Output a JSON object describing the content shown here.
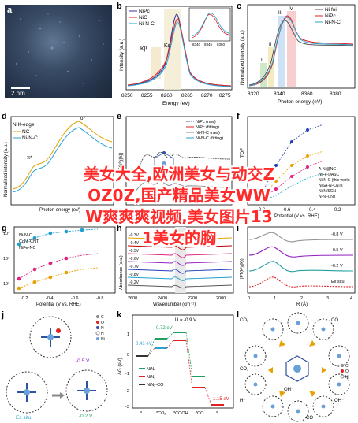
{
  "overlay_lines": [
    "美女大全,欧洲美女与动交Z",
    "OZ0Z,国产精品美女WW",
    "W爽爽爽视频,美女图片13",
    "1美女的胸"
  ],
  "panels": {
    "a": {
      "label": "a",
      "scale_bar": "2 nm"
    },
    "b": {
      "label": "b",
      "legend": [
        "NiPc",
        "NiO",
        "Ni-N-C"
      ],
      "xlabel": "Energy (eV)",
      "ylabel": "Intensity (a.u.)",
      "xticks": [
        "8250",
        "8255",
        "8260",
        "8265",
        "8270",
        "8275"
      ],
      "annot": [
        "Kβ",
        "Kα"
      ],
      "inset_legend": [
        "NiPc",
        "NiO",
        "Ni-N-C"
      ],
      "inset_xticks": [
        "8340",
        "8345",
        "8350"
      ],
      "inset_xlabel": "Energy (eV)"
    },
    "c": {
      "label": "c",
      "legend": [
        "Ni foil",
        "NiPc",
        "Ni-N-C"
      ],
      "xlabel": "Photon energy (eV)",
      "ylabel": "Normalized intensity (a.u.)",
      "xticks": [
        "8320",
        "8340",
        "8360",
        "8380"
      ],
      "annot": [
        "I",
        "II",
        "III",
        "IV"
      ]
    },
    "d": {
      "label": "d",
      "title": "N K-edge",
      "legend": [
        "NC",
        "Ni-N-C"
      ],
      "ylabel": "Normalized intensity (a.u.)",
      "xlabel": "Photon energy (eV)",
      "annot": [
        "π*",
        "σ*",
        "N pyridinic",
        "N graphitic",
        "N pyrrolic"
      ]
    },
    "e": {
      "label": "e",
      "legend": [
        "NiPc (raw)",
        "NiPc (fitting)",
        "Ni-N-C (raw)",
        "Ni-N-C (fitting)"
      ],
      "ylabel": "FT(k³χ(k))"
    },
    "f": {
      "label": "f",
      "legend": [
        "A-Ni@NG",
        "NiFe-DASC",
        "Ni-N-C (this work)",
        "NiSA-N-CNTs",
        "Ni-N/SCN",
        "N-Ni-CNT"
      ],
      "ylabel": "TOF",
      "xlabel": "Potential (V vs. RHE)",
      "xticks": [
        "-0.8",
        "-0.6",
        "-0.4",
        "-0.2"
      ]
    },
    "g": {
      "label": "g",
      "legend": [
        "Ni-N-C",
        "CoNi-CNT",
        "NiFe-NC"
      ],
      "ylabel": "TOF (s⁻¹)",
      "xlabel": "Potential (V vs. RHE)",
      "yticks": [
        "10⁴",
        "10³",
        "10²"
      ],
      "xticks": [
        "-0.2",
        "-0.4",
        "-0.6",
        "-0.8"
      ]
    },
    "h": {
      "label": "h",
      "ylabel": "Absorbance (a.u.)",
      "xlabel": "Wavenumber (cm⁻¹)",
      "curve_labels": [
        "-0.3V",
        "-0.4V",
        "-0.5V",
        "-0.6V",
        "-0.7V",
        "-0.8V",
        "-0.2V"
      ],
      "xticks": [
        "2600",
        "2400",
        "2200",
        "2000"
      ]
    },
    "i": {
      "label": "i",
      "curve_labels": [
        "-0.8 V",
        "-0.5 V",
        "-0.2 V",
        "Ex situ"
      ],
      "ylabel": "|FT(k³χ(k))|",
      "xlabel": "R (Å)",
      "xticks": [
        "0",
        "1",
        "2",
        "3",
        "4"
      ]
    },
    "j": {
      "label": "j",
      "annot": [
        "-0.5 V",
        "Ex situ",
        "-0.2 V"
      ],
      "legend": [
        "C",
        "O",
        "N",
        "H",
        "Ni"
      ]
    },
    "k": {
      "label": "k",
      "annot": [
        "U = -0.9 V",
        "0.72 eV",
        "0.41 eV",
        "1.15 eV"
      ],
      "legend": [
        "NiN₄",
        "NiN₂",
        "NiN₂-CO"
      ],
      "ylabel": "ΔG (eV)",
      "xticks": [
        "*",
        "*CO₂",
        "*COOH",
        "*CO",
        "*"
      ],
      "yticks": [
        "1",
        "0",
        "-1",
        "-2",
        "-3"
      ]
    },
    "l": {
      "label": "l",
      "annot": [
        "CO₂",
        "CO",
        "H⁺",
        "OH⁻",
        "CO",
        "OH⁻",
        "CO₂"
      ],
      "legend": [
        "C",
        "O",
        "H",
        "N",
        "Ni"
      ]
    }
  }
}
